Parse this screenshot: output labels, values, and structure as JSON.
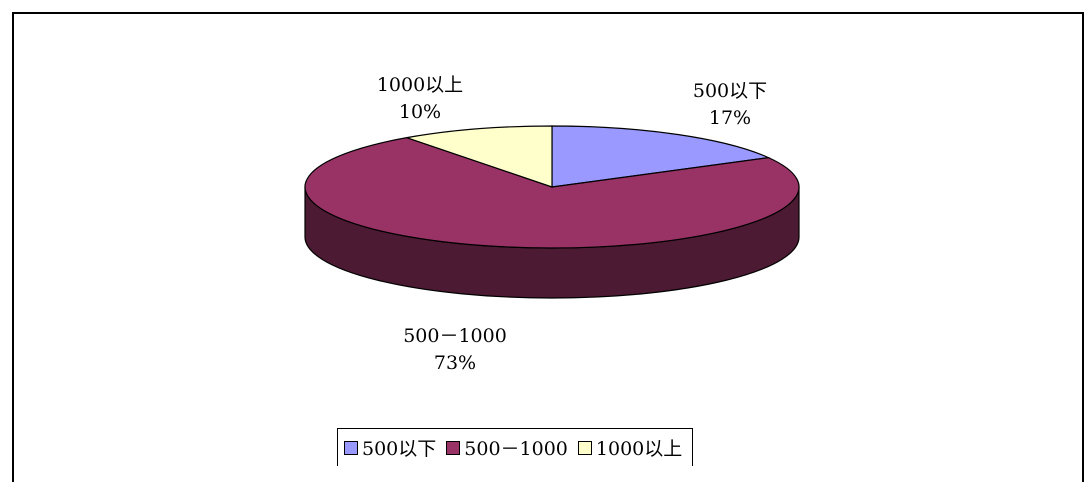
{
  "chart_data": {
    "type": "pie",
    "style": "3d",
    "categories": [
      "500以下",
      "500－1000",
      "1000以上"
    ],
    "values": [
      17,
      73,
      10
    ],
    "value_labels": [
      "17%",
      "73%",
      "10%"
    ],
    "colors": [
      "#9999ff",
      "#993366",
      "#ffffcc"
    ],
    "side_colors": [
      "#5c5c99",
      "#4d1a33",
      "#999980"
    ],
    "legend_position": "bottom"
  }
}
